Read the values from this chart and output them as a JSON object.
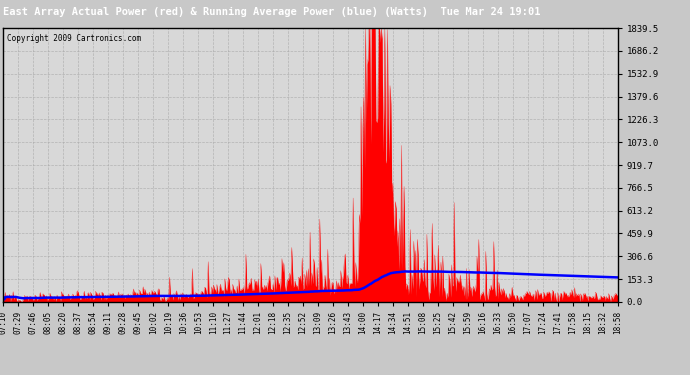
{
  "title": "East Array Actual Power (red) & Running Average Power (blue) (Watts)  Tue Mar 24 19:01",
  "copyright": "Copyright 2009 Cartronics.com",
  "ylabel_right": [
    "1839.5",
    "1686.2",
    "1532.9",
    "1379.6",
    "1226.3",
    "1073.0",
    "919.7",
    "766.5",
    "613.2",
    "459.9",
    "306.6",
    "153.3",
    "0.0"
  ],
  "ymax": 1839.5,
  "ymin": 0.0,
  "background_color": "#c8c8c8",
  "plot_bg_color": "#d8d8d8",
  "title_bg_color": "#000000",
  "title_text_color": "#ffffff",
  "grid_color": "#aaaaaa",
  "bar_color": "#ff0000",
  "line_color": "#0000ff",
  "x_labels": [
    "07:10",
    "07:29",
    "07:46",
    "08:05",
    "08:20",
    "08:37",
    "08:54",
    "09:11",
    "09:28",
    "09:45",
    "10:02",
    "10:19",
    "10:36",
    "10:53",
    "11:10",
    "11:27",
    "11:44",
    "12:01",
    "12:18",
    "12:35",
    "12:52",
    "13:09",
    "13:26",
    "13:43",
    "14:00",
    "14:17",
    "14:34",
    "14:51",
    "15:08",
    "15:25",
    "15:42",
    "15:59",
    "16:16",
    "16:33",
    "16:50",
    "17:07",
    "17:24",
    "17:41",
    "17:58",
    "18:15",
    "18:32",
    "18:58"
  ]
}
